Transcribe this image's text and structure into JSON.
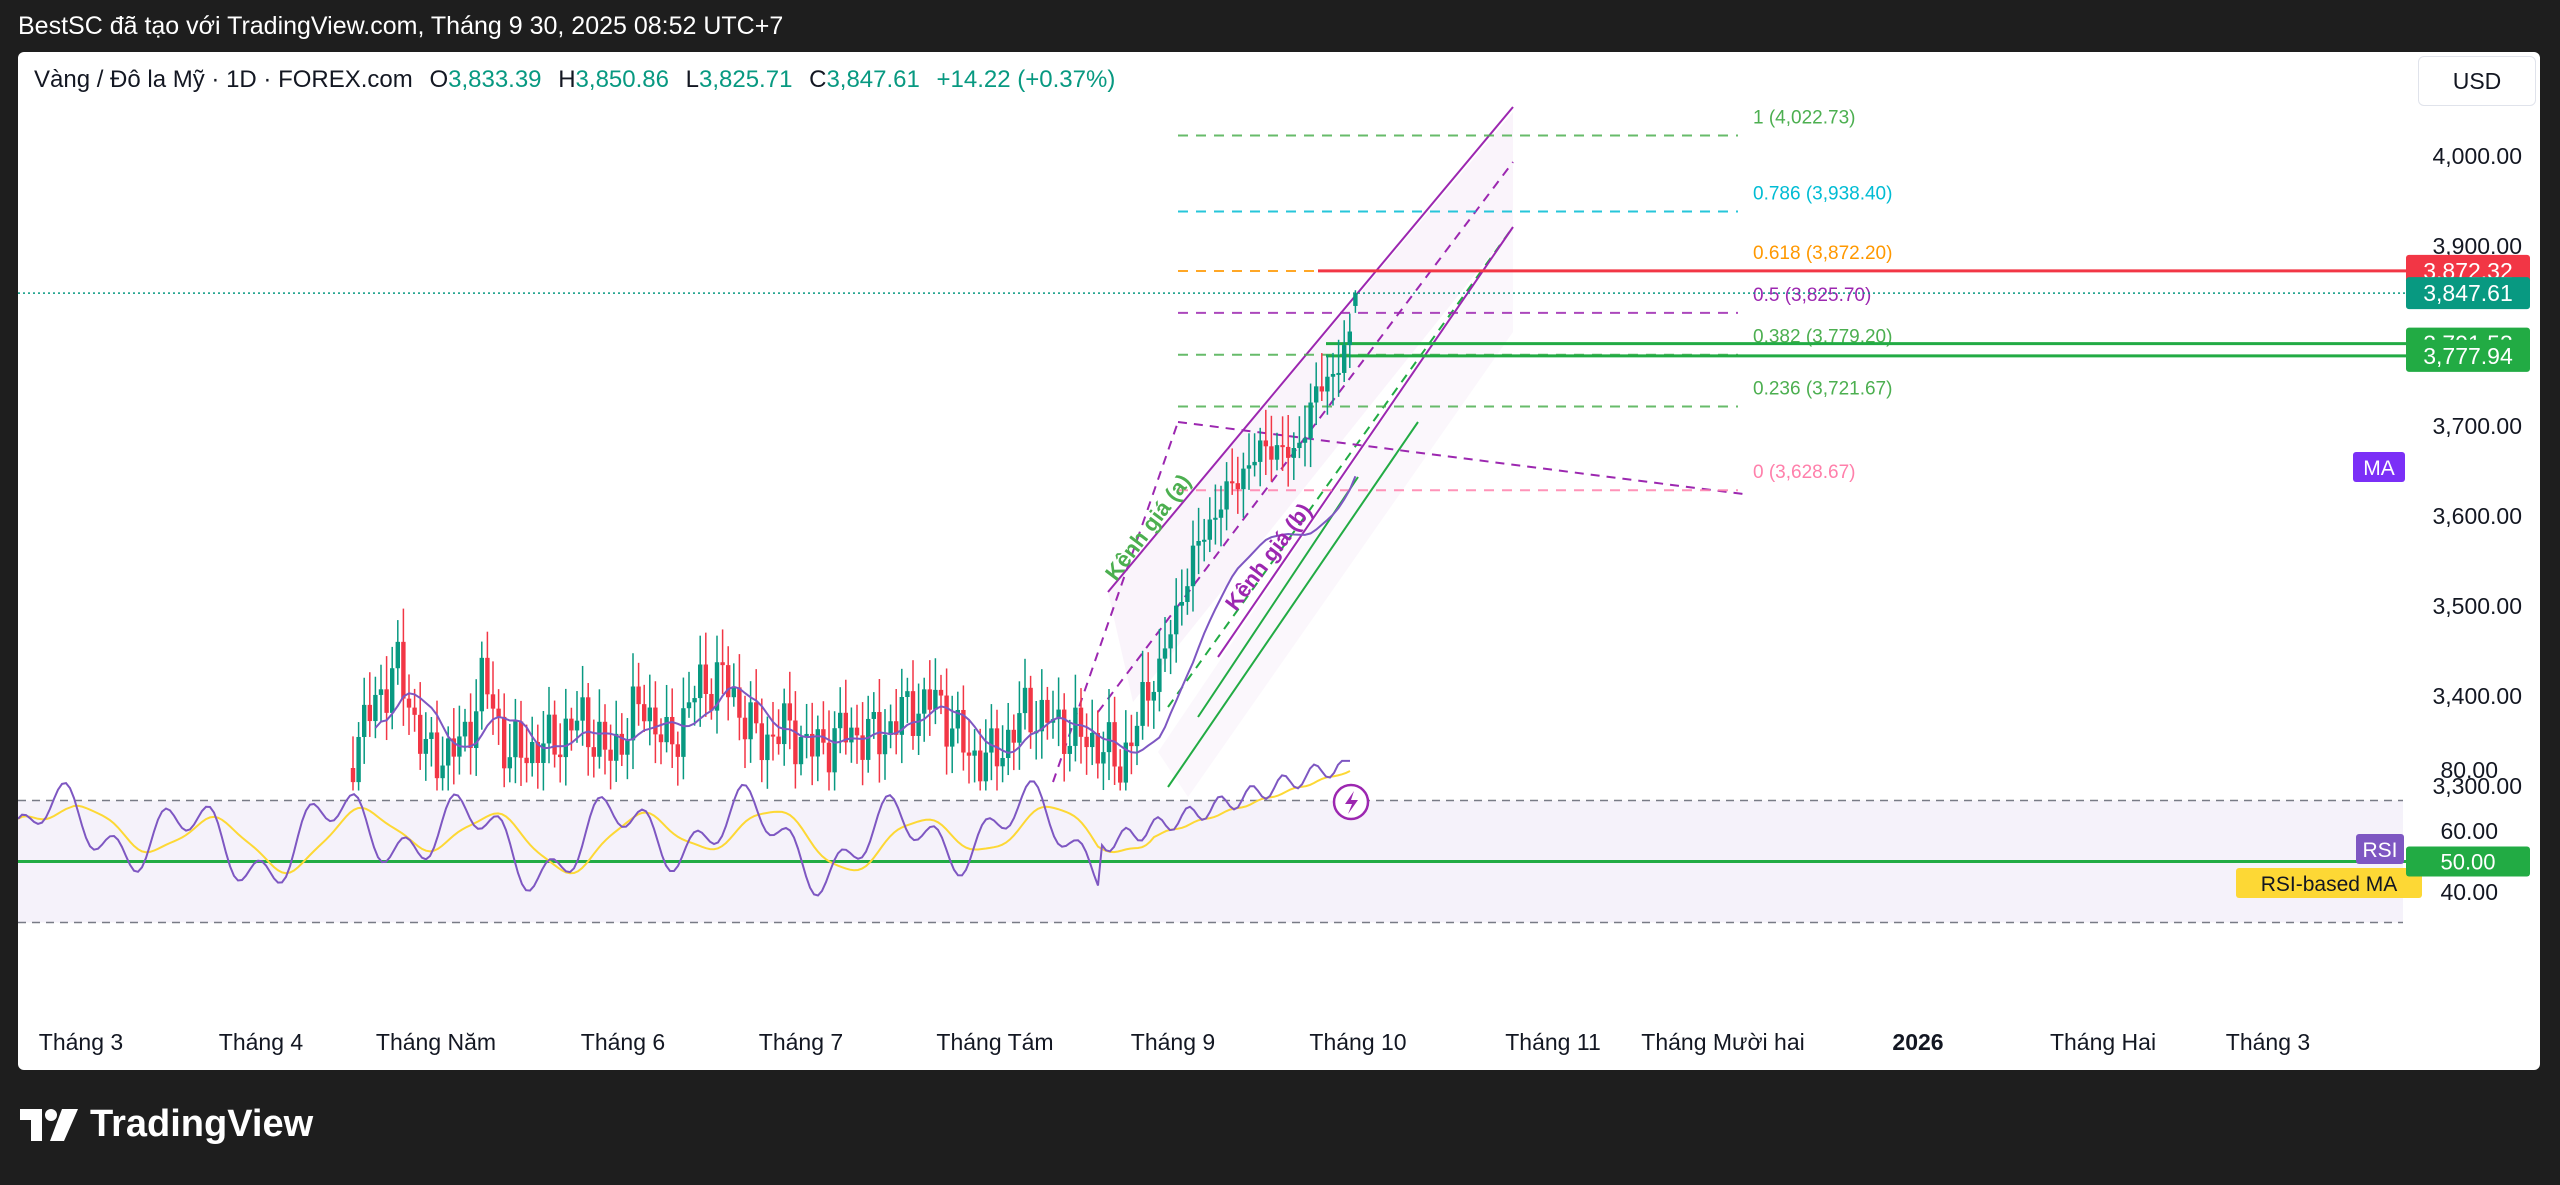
{
  "banner": "BestSC đã tạo với TradingView.com, Tháng 9 30, 2025 08:52 UTC+7",
  "symbol_line": "Vàng / Đô la Mỹ · 1D · FOREX.com",
  "ohlc": {
    "o_label": "O",
    "o_value": "3,833.39",
    "h_label": "H",
    "h_value": "3,850.86",
    "l_label": "L",
    "l_value": "3,825.71",
    "c_label": "C",
    "c_value": "3,847.61",
    "change": "+14.22 (+0.37%)"
  },
  "currency_button": "USD",
  "footer_brand": "TradingView",
  "colors": {
    "up": "#089981",
    "down": "#f23645",
    "ma": "#7e57c2",
    "rsi": "#7e57c2",
    "rsi_ma": "#fdd835",
    "fib_1": "#4caf50",
    "fib_0786": "#00bcd4",
    "fib_0618": "#ff9800",
    "fib_05": "#9c27b0",
    "fib_0382": "#4caf50",
    "fib_0236": "#4caf50",
    "fib_0": "#ff80ab",
    "channel_a": "#4caf50",
    "channel_b": "#9c27b0",
    "resistance": "#f23645",
    "support": "#4caf50"
  },
  "chart_data": {
    "type": "candlestick",
    "title": "Vàng / Đô la Mỹ · 1D · FOREX.com",
    "x_axis_labels": [
      "Tháng 3",
      "Tháng 4",
      "Tháng Năm",
      "Tháng 6",
      "Tháng 7",
      "Tháng Tám",
      "Tháng 9",
      "Tháng 10",
      "Tháng 11",
      "Tháng Mười hai",
      "2026",
      "Tháng Hai",
      "Tháng 3"
    ],
    "y_ticks": [
      "4,000.00",
      "3,900.00",
      "3,800.00",
      "3,700.00",
      "3,600.00",
      "3,500.00",
      "3,400.00",
      "3,300.00"
    ],
    "ylim": [
      3200,
      4100
    ],
    "price_labels": [
      {
        "text": "3,872.32",
        "color": "#f23645",
        "value": 3872.32
      },
      {
        "text": "3,847.61",
        "color": "#089981",
        "value": 3847.61
      },
      {
        "text": "3,791.53",
        "color": "#22ab44",
        "value": 3791.53
      },
      {
        "text": "3,777.94",
        "color": "#22ab44",
        "value": 3777.94
      }
    ],
    "ma_tag": "MA",
    "fib_levels": [
      {
        "label": "1 (4,022.73)",
        "value": 4022.73,
        "color": "#4caf50"
      },
      {
        "label": "0.786 (3,938.40)",
        "value": 3938.4,
        "color": "#00bcd4"
      },
      {
        "label": "0.618 (3,872.20)",
        "value": 3872.2,
        "color": "#ff9800"
      },
      {
        "label": "0.5 (3,825.70)",
        "value": 3825.7,
        "color": "#9c27b0"
      },
      {
        "label": "0.382 (3,779.20)",
        "value": 3779.2,
        "color": "#4caf50"
      },
      {
        "label": "0.236 (3,721.67)",
        "value": 3721.67,
        "color": "#4caf50"
      },
      {
        "label": "0 (3,628.67)",
        "value": 3628.67,
        "color": "#ff80ab"
      }
    ],
    "channel_labels": [
      "Kênh giá (a)",
      "Kênh giá (b)"
    ],
    "rsi": {
      "tag": "RSI",
      "ma_tag": "RSI-based MA",
      "ticks": [
        "80.00",
        "60.00",
        "40.00"
      ],
      "level_50": "50.00",
      "ylim": [
        30,
        85
      ]
    }
  }
}
